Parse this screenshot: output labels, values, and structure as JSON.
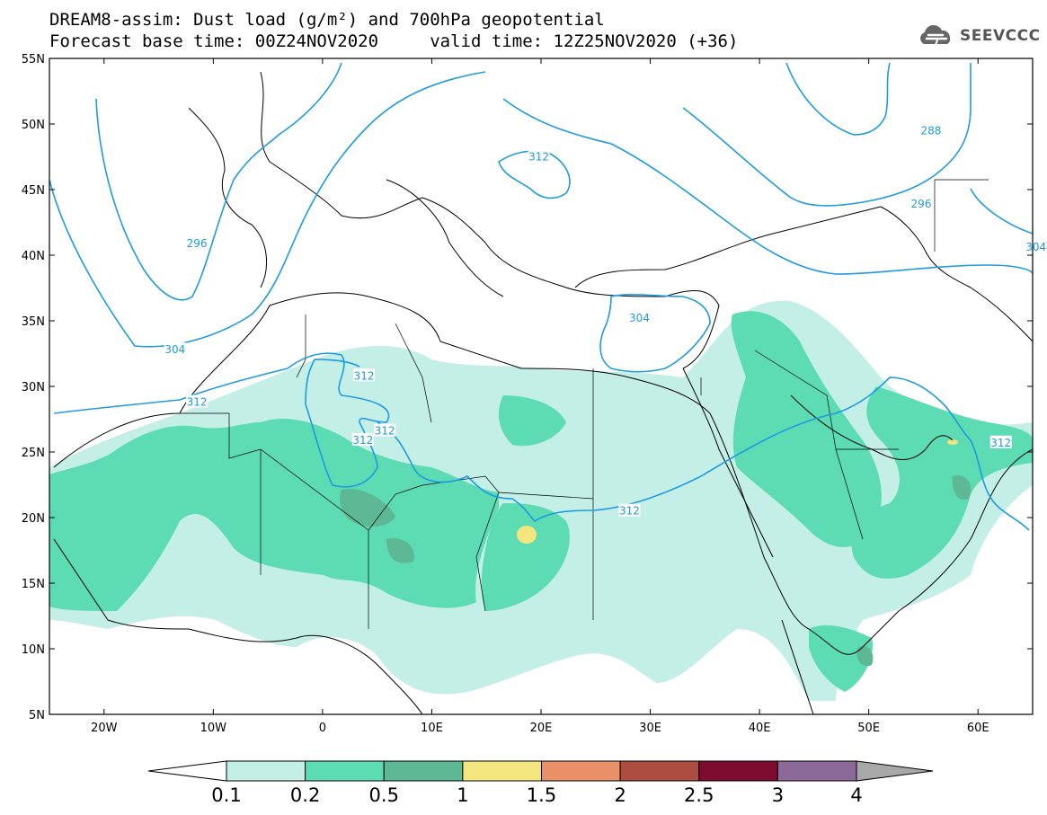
{
  "header": {
    "title_line1": "DREAM8-assim: Dust load (g/m²) and 700hPa geopotential",
    "title_line2": "Forecast base time: 00Z24NOV2020     valid time: 12Z25NOV2020 (+36)",
    "logo_text": "SEEVCCC"
  },
  "map": {
    "lon_range": [
      -25,
      65
    ],
    "lat_range": [
      5,
      55
    ],
    "lat_labels": [
      "55N",
      "50N",
      "45N",
      "40N",
      "35N",
      "30N",
      "25N",
      "20N",
      "15N",
      "10N",
      "5N"
    ],
    "lat_values": [
      55,
      50,
      45,
      40,
      35,
      30,
      25,
      20,
      15,
      10,
      5
    ],
    "lon_labels": [
      "20W",
      "10W",
      "0",
      "10E",
      "20E",
      "30E",
      "40E",
      "50E",
      "60E"
    ],
    "lon_values": [
      -20,
      -10,
      0,
      10,
      20,
      30,
      40,
      50,
      60
    ],
    "contour_labels": [
      {
        "text": "312",
        "lon": -11.5,
        "lat": 28.8
      },
      {
        "text": "304",
        "lon": -13.5,
        "lat": 32.8
      },
      {
        "text": "296",
        "lon": -11.5,
        "lat": 40.9
      },
      {
        "text": "312",
        "lon": 3.8,
        "lat": 30.8
      },
      {
        "text": "312",
        "lon": 5.7,
        "lat": 26.6
      },
      {
        "text": "312",
        "lon": 3.7,
        "lat": 25.9
      },
      {
        "text": "312",
        "lon": 19.8,
        "lat": 47.5
      },
      {
        "text": "304",
        "lon": 29.0,
        "lat": 35.2
      },
      {
        "text": "312",
        "lon": 28.1,
        "lat": 20.5
      },
      {
        "text": "288",
        "lon": 55.7,
        "lat": 49.5
      },
      {
        "text": "296",
        "lon": 54.8,
        "lat": 43.9
      },
      {
        "text": "304",
        "lon": 65.3,
        "lat": 40.6
      },
      {
        "text": "312",
        "lon": 62.1,
        "lat": 25.7
      }
    ]
  },
  "colorbar": {
    "tick_labels": [
      "0.1",
      "0.2",
      "0.5",
      "1",
      "1.5",
      "2",
      "2.5",
      "3",
      "4"
    ],
    "colors": [
      "#c4efe6",
      "#5ddcb3",
      "#5cb895",
      "#f3e67f",
      "#e99068",
      "#ad4c40",
      "#7e0c30",
      "#8b6a9a"
    ],
    "under_color": "#ffffff",
    "over_color": "#a8a8a8"
  }
}
